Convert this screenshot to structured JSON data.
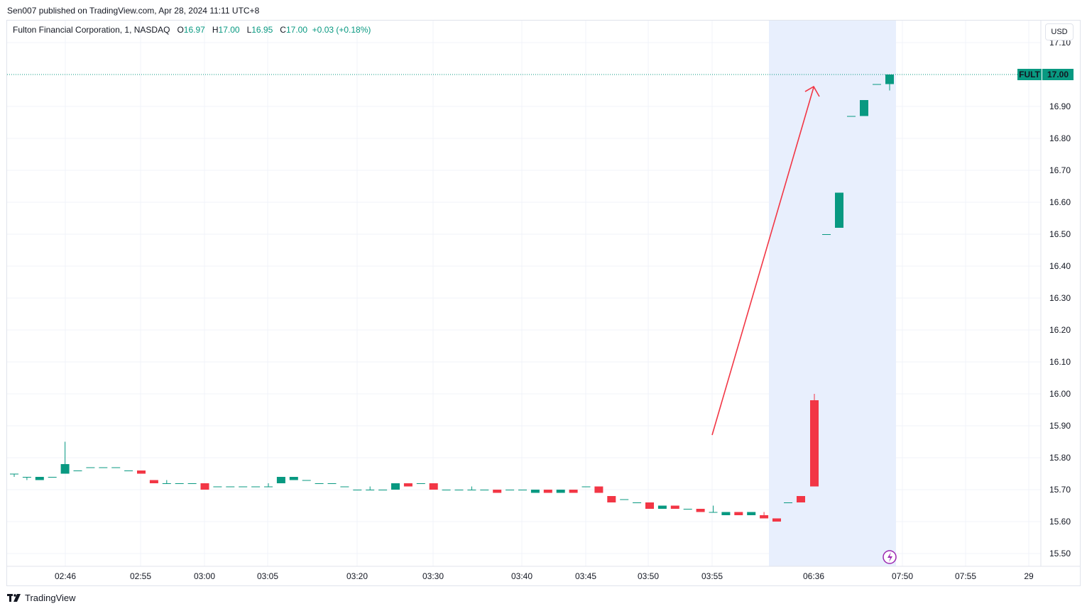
{
  "header": {
    "published_text": "Sen007 published on TradingView.com, Apr 28, 2024 11:11 UTC+8"
  },
  "legend": {
    "symbol_text": "Fulton Financial Corporation, 1, NASDAQ",
    "open_label": "O",
    "open_value": "16.97",
    "high_label": "H",
    "high_value": "17.00",
    "low_label": "L",
    "low_value": "16.95",
    "close_label": "C",
    "close_value": "17.00",
    "change_value": "+0.03 (+0.18%)"
  },
  "currency_button": {
    "label": "USD"
  },
  "price_tag": {
    "ticker": "FULT",
    "price": "17.00"
  },
  "footer": {
    "brand": "TradingView"
  },
  "colors": {
    "up": "#089981",
    "down": "#f23645",
    "highlight": "#e8effd",
    "arrow": "#f23645",
    "grid": "#f0f3fa"
  },
  "icons": {
    "flash": "flash-icon",
    "logo": "tradingview-logo-icon"
  },
  "chart_data": {
    "type": "candlestick",
    "symbol": "FULT",
    "ylim": [
      15.47,
      17.12
    ],
    "y_ticks": [
      "17.10",
      "16.90",
      "16.80",
      "16.70",
      "16.60",
      "16.50",
      "16.40",
      "16.30",
      "16.20",
      "16.10",
      "16.00",
      "15.90",
      "15.80",
      "15.70",
      "15.60",
      "15.50"
    ],
    "x_ticks": [
      "02:46",
      "02:55",
      "03:00",
      "03:05",
      "03:20",
      "03:30",
      "03:40",
      "03:45",
      "03:50",
      "03:55",
      "06:36",
      "07:50",
      "07:55",
      "29"
    ],
    "last_price": 17.0,
    "candles": [
      {
        "o": 15.75,
        "h": 15.75,
        "l": 15.74,
        "c": 15.75
      },
      {
        "o": 15.74,
        "h": 15.74,
        "l": 15.73,
        "c": 15.74
      },
      {
        "o": 15.73,
        "h": 15.74,
        "l": 15.73,
        "c": 15.74
      },
      {
        "o": 15.74,
        "h": 15.74,
        "l": 15.74,
        "c": 15.74
      },
      {
        "o": 15.75,
        "h": 15.85,
        "l": 15.75,
        "c": 15.78
      },
      {
        "o": 15.76,
        "h": 15.76,
        "l": 15.76,
        "c": 15.76
      },
      {
        "o": 15.77,
        "h": 15.77,
        "l": 15.77,
        "c": 15.77
      },
      {
        "o": 15.77,
        "h": 15.77,
        "l": 15.77,
        "c": 15.77
      },
      {
        "o": 15.77,
        "h": 15.77,
        "l": 15.77,
        "c": 15.77
      },
      {
        "o": 15.76,
        "h": 15.76,
        "l": 15.76,
        "c": 15.76
      },
      {
        "o": 15.76,
        "h": 15.76,
        "l": 15.75,
        "c": 15.75
      },
      {
        "o": 15.73,
        "h": 15.73,
        "l": 15.72,
        "c": 15.72
      },
      {
        "o": 15.72,
        "h": 15.73,
        "l": 15.72,
        "c": 15.72
      },
      {
        "o": 15.72,
        "h": 15.72,
        "l": 15.72,
        "c": 15.72
      },
      {
        "o": 15.72,
        "h": 15.72,
        "l": 15.72,
        "c": 15.72
      },
      {
        "o": 15.72,
        "h": 15.72,
        "l": 15.7,
        "c": 15.7
      },
      {
        "o": 15.71,
        "h": 15.71,
        "l": 15.71,
        "c": 15.71
      },
      {
        "o": 15.71,
        "h": 15.71,
        "l": 15.71,
        "c": 15.71
      },
      {
        "o": 15.71,
        "h": 15.71,
        "l": 15.71,
        "c": 15.71
      },
      {
        "o": 15.71,
        "h": 15.71,
        "l": 15.71,
        "c": 15.71
      },
      {
        "o": 15.71,
        "h": 15.72,
        "l": 15.71,
        "c": 15.71
      },
      {
        "o": 15.72,
        "h": 15.74,
        "l": 15.72,
        "c": 15.74
      },
      {
        "o": 15.73,
        "h": 15.74,
        "l": 15.73,
        "c": 15.74
      },
      {
        "o": 15.73,
        "h": 15.73,
        "l": 15.73,
        "c": 15.73
      },
      {
        "o": 15.72,
        "h": 15.72,
        "l": 15.72,
        "c": 15.72
      },
      {
        "o": 15.72,
        "h": 15.72,
        "l": 15.72,
        "c": 15.72
      },
      {
        "o": 15.71,
        "h": 15.71,
        "l": 15.71,
        "c": 15.71
      },
      {
        "o": 15.7,
        "h": 15.7,
        "l": 15.7,
        "c": 15.7
      },
      {
        "o": 15.7,
        "h": 15.71,
        "l": 15.7,
        "c": 15.7
      },
      {
        "o": 15.7,
        "h": 15.7,
        "l": 15.7,
        "c": 15.7
      },
      {
        "o": 15.7,
        "h": 15.72,
        "l": 15.7,
        "c": 15.72
      },
      {
        "o": 15.72,
        "h": 15.72,
        "l": 15.71,
        "c": 15.71
      },
      {
        "o": 15.72,
        "h": 15.72,
        "l": 15.72,
        "c": 15.72
      },
      {
        "o": 15.72,
        "h": 15.72,
        "l": 15.7,
        "c": 15.7
      },
      {
        "o": 15.7,
        "h": 15.7,
        "l": 15.7,
        "c": 15.7
      },
      {
        "o": 15.7,
        "h": 15.7,
        "l": 15.7,
        "c": 15.7
      },
      {
        "o": 15.7,
        "h": 15.71,
        "l": 15.7,
        "c": 15.7
      },
      {
        "o": 15.7,
        "h": 15.7,
        "l": 15.7,
        "c": 15.7
      },
      {
        "o": 15.7,
        "h": 15.7,
        "l": 15.69,
        "c": 15.69
      },
      {
        "o": 15.7,
        "h": 15.7,
        "l": 15.7,
        "c": 15.7
      },
      {
        "o": 15.7,
        "h": 15.7,
        "l": 15.7,
        "c": 15.7
      },
      {
        "o": 15.69,
        "h": 15.7,
        "l": 15.69,
        "c": 15.7
      },
      {
        "o": 15.7,
        "h": 15.7,
        "l": 15.69,
        "c": 15.69
      },
      {
        "o": 15.69,
        "h": 15.7,
        "l": 15.69,
        "c": 15.7
      },
      {
        "o": 15.7,
        "h": 15.7,
        "l": 15.69,
        "c": 15.69
      },
      {
        "o": 15.71,
        "h": 15.71,
        "l": 15.71,
        "c": 15.71
      },
      {
        "o": 15.71,
        "h": 15.71,
        "l": 15.69,
        "c": 15.69
      },
      {
        "o": 15.68,
        "h": 15.68,
        "l": 15.66,
        "c": 15.66
      },
      {
        "o": 15.67,
        "h": 15.67,
        "l": 15.67,
        "c": 15.67
      },
      {
        "o": 15.66,
        "h": 15.66,
        "l": 15.66,
        "c": 15.66
      },
      {
        "o": 15.66,
        "h": 15.66,
        "l": 15.64,
        "c": 15.64
      },
      {
        "o": 15.64,
        "h": 15.65,
        "l": 15.64,
        "c": 15.65
      },
      {
        "o": 15.65,
        "h": 15.65,
        "l": 15.64,
        "c": 15.64
      },
      {
        "o": 15.64,
        "h": 15.64,
        "l": 15.64,
        "c": 15.64
      },
      {
        "o": 15.64,
        "h": 15.64,
        "l": 15.63,
        "c": 15.63
      },
      {
        "o": 15.63,
        "h": 15.65,
        "l": 15.63,
        "c": 15.63
      },
      {
        "o": 15.62,
        "h": 15.63,
        "l": 15.62,
        "c": 15.63
      },
      {
        "o": 15.63,
        "h": 15.63,
        "l": 15.62,
        "c": 15.62
      },
      {
        "o": 15.62,
        "h": 15.63,
        "l": 15.62,
        "c": 15.63
      },
      {
        "o": 15.62,
        "h": 15.63,
        "l": 15.61,
        "c": 15.61
      },
      {
        "o": 15.61,
        "h": 15.61,
        "l": 15.6,
        "c": 15.6
      },
      {
        "o": 15.66,
        "h": 15.66,
        "l": 15.66,
        "c": 15.66
      },
      {
        "o": 15.68,
        "h": 15.68,
        "l": 15.66,
        "c": 15.66
      },
      {
        "o": 15.98,
        "h": 16.0,
        "l": 15.71,
        "c": 15.71
      },
      {
        "o": 16.5,
        "h": 16.5,
        "l": 16.5,
        "c": 16.5
      },
      {
        "o": 16.52,
        "h": 16.63,
        "l": 16.52,
        "c": 16.63
      },
      {
        "o": 16.87,
        "h": 16.87,
        "l": 16.87,
        "c": 16.87
      },
      {
        "o": 16.87,
        "h": 16.92,
        "l": 16.87,
        "c": 16.92
      },
      {
        "o": 16.97,
        "h": 16.97,
        "l": 16.97,
        "c": 16.97
      },
      {
        "o": 16.97,
        "h": 17.0,
        "l": 16.95,
        "c": 17.0
      }
    ]
  }
}
